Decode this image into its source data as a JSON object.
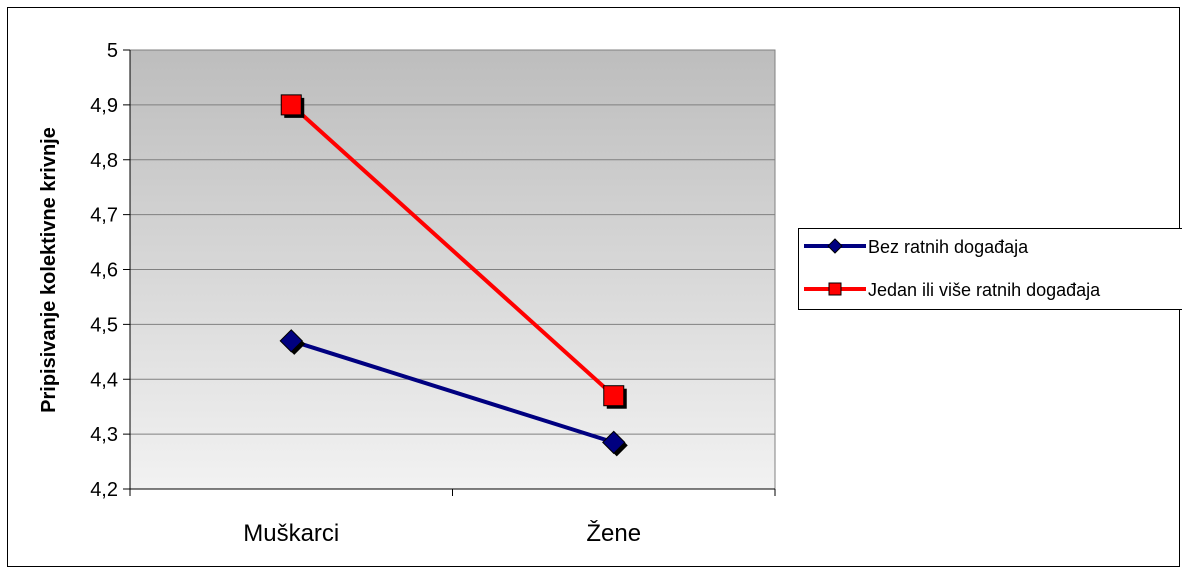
{
  "chart_data": {
    "type": "line",
    "title": "",
    "xlabel": "",
    "ylabel": "Pripisivanje kolektivne krivnje",
    "categories": [
      "Muškarci",
      "Žene"
    ],
    "ylim": [
      4.2,
      5.0
    ],
    "yticks": [
      "4,2",
      "4,3",
      "4,4",
      "4,5",
      "4,6",
      "4,7",
      "4,8",
      "4,9",
      "5"
    ],
    "grid": true,
    "legend_position": "right",
    "series": [
      {
        "name": "Bez ratnih događaja",
        "values": [
          4.47,
          4.285
        ],
        "color": "#000080",
        "marker": "diamond"
      },
      {
        "name": "Jedan ili više ratnih događaja",
        "values": [
          4.9,
          4.37
        ],
        "color": "#ff0000",
        "marker": "square"
      }
    ]
  }
}
